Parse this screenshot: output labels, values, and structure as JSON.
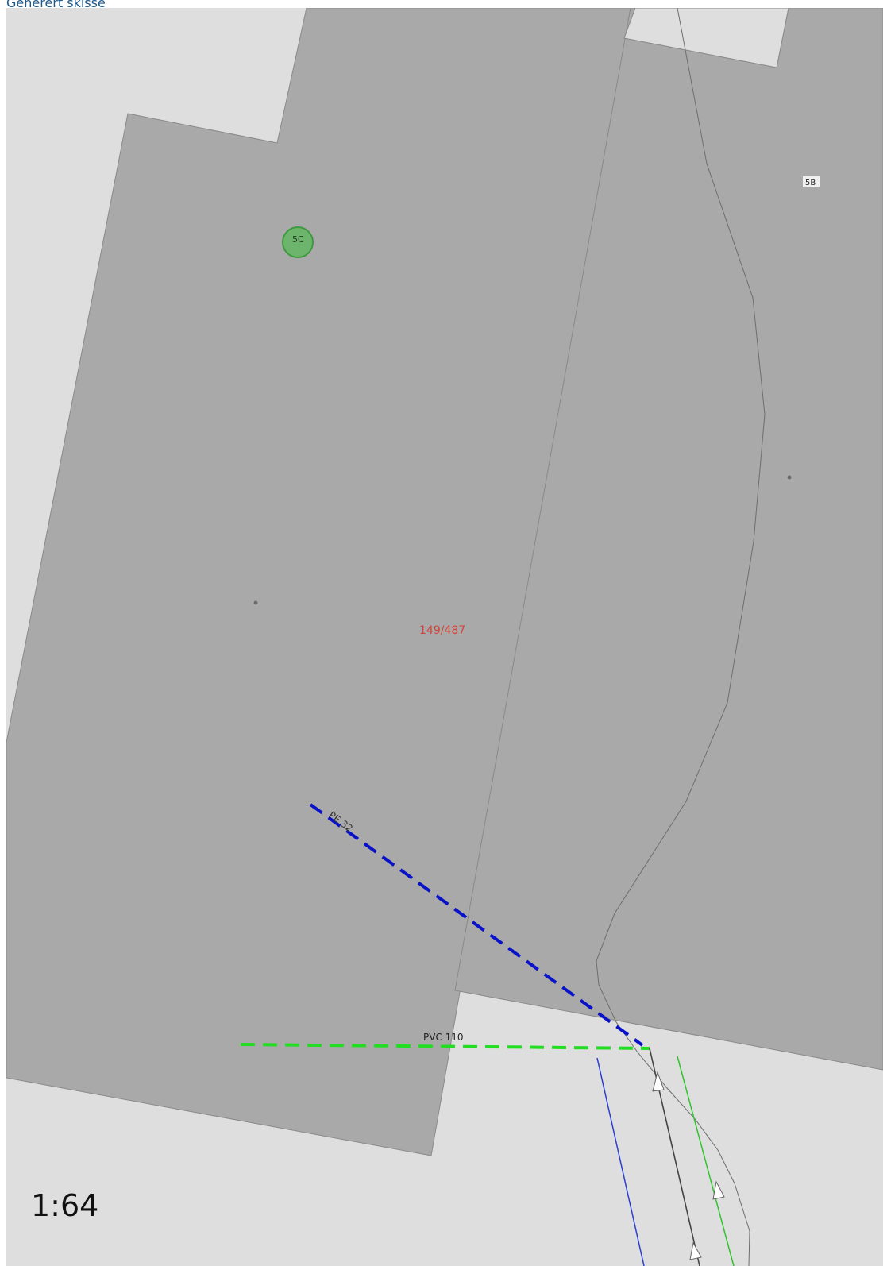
{
  "header": {
    "title": "Generert skisse"
  },
  "map": {
    "scale": "1:64",
    "parcel_label": "149/487",
    "building_labels": {
      "primary": "5C",
      "secondary": "5B"
    },
    "pipes": [
      {
        "label": "PE 32",
        "color": "#0a12c8",
        "style": "dashed"
      },
      {
        "label": "PVC 110",
        "color": "#22dd22",
        "style": "dashed"
      }
    ],
    "colors": {
      "background": "#dedede",
      "building_fill": "#a9a9a9",
      "parcel_label": "#d0453a",
      "marker_fill": "#5cb85c",
      "outline": "#707070"
    },
    "icons": [
      "point-marker-icon",
      "flow-arrow-icon"
    ]
  }
}
